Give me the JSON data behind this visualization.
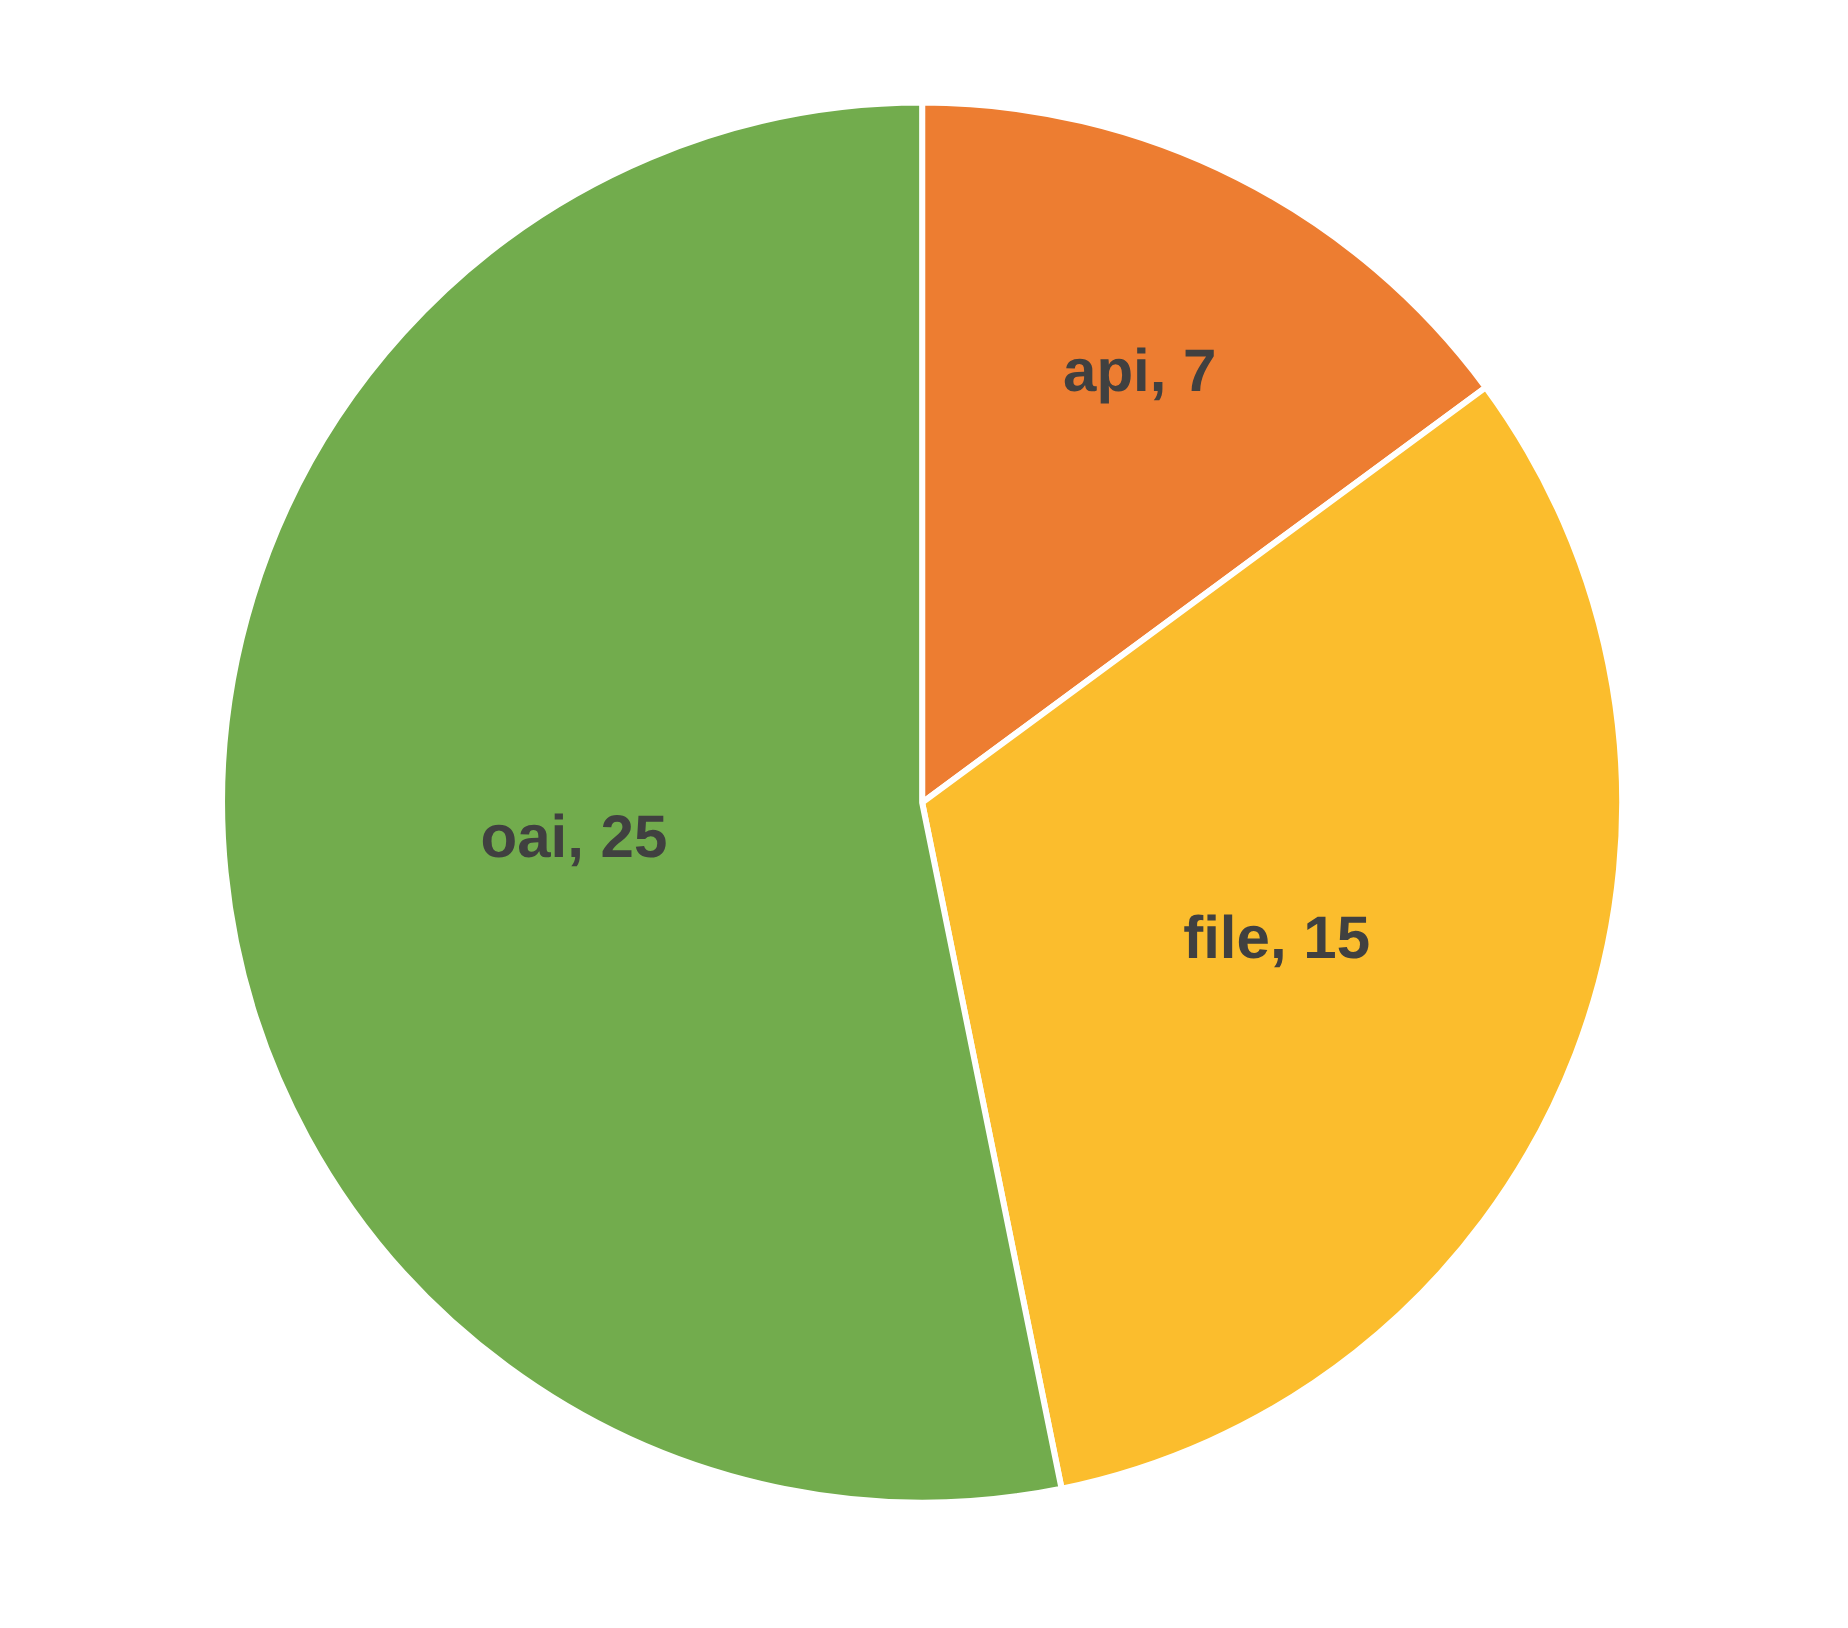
{
  "chart_data": {
    "type": "pie",
    "categories": [
      "api",
      "file",
      "oai"
    ],
    "values": [
      7,
      15,
      25
    ],
    "colors": [
      "#ed7d31",
      "#fbbd2d",
      "#72ac4d"
    ],
    "value_labels": [
      ", 7",
      ", 15",
      ", 25"
    ],
    "legend": false
  }
}
